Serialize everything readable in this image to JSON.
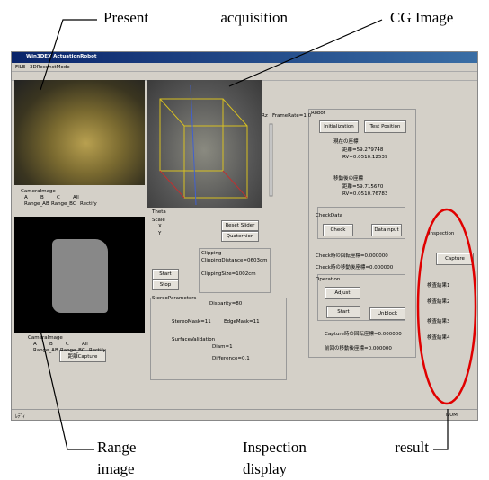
{
  "callouts": {
    "present": "Present acquisition",
    "cg": "CG Image",
    "range": [
      "Range",
      "image"
    ],
    "inspection": [
      "Inspection result",
      "display"
    ]
  },
  "window": {
    "title": "Win3DEX ActuationRobot",
    "menu": [
      "FILE",
      "3DReconstMode"
    ],
    "camera_group": {
      "label": "CameraImage",
      "options": [
        "A",
        "B",
        "C",
        "All",
        "Range_AB",
        "Range_BC",
        "Rectify"
      ]
    },
    "range_group": {
      "label": "CameraImage",
      "options": [
        "A",
        "B",
        "C",
        "All",
        "Range_AB",
        "Range_BC",
        "Rectify"
      ],
      "button": "距離Capture"
    },
    "view": {
      "theta": "Theta",
      "scale": "Scale",
      "x": "X",
      "y": "Y",
      "reset": "Reset Slider",
      "quaternion": "Quaternion",
      "start": "Start",
      "stop": "Stop",
      "rz": "Rz",
      "framerate": "FrameRate=1.0"
    },
    "clipping": {
      "label": "Clipping",
      "distance": "ClippingDistance=0603cm",
      "size": "ClippingSize=1002cm"
    },
    "stereo": {
      "label": "StereoParameters",
      "disparity": "Disparity=80",
      "stereo_mask": "StereoMask=11",
      "edge_mask": "EdgeMask=11",
      "surface": "SurfaceValidation",
      "diam": "Diam=1",
      "difference": "Difference=0.1"
    },
    "robot": {
      "label": "Robot",
      "init": "Initialization",
      "test": "Test Position",
      "current": "現在の座標",
      "current_d": "距離=59.279748",
      "current_rv": "RV=0.0510.12539",
      "moved": "移動後の座標",
      "moved_d": "距離=59.715670",
      "moved_rv": "RV=0.0510.76783",
      "checkdata": "CheckData",
      "check": "Check",
      "datainput": "DataInput",
      "check_rot": "Check時の回転座標=0.000000",
      "check_move": "Check時の移動後座標=0.000000",
      "operation": "Operation",
      "adjust": "Adjust",
      "start": "Start",
      "unblock": "Unblock",
      "capture_rot": "Capture時の回転座標=0.000000",
      "prev_move": "前回の移動後座標=0.000000"
    },
    "inspection": {
      "label": "Inspection",
      "capture": "Capture",
      "results": [
        "検査結果1",
        "検査結果2",
        "検査結果3",
        "検査結果4"
      ]
    },
    "status": [
      "ﾚﾃﾞｨ",
      "NUM"
    ]
  }
}
